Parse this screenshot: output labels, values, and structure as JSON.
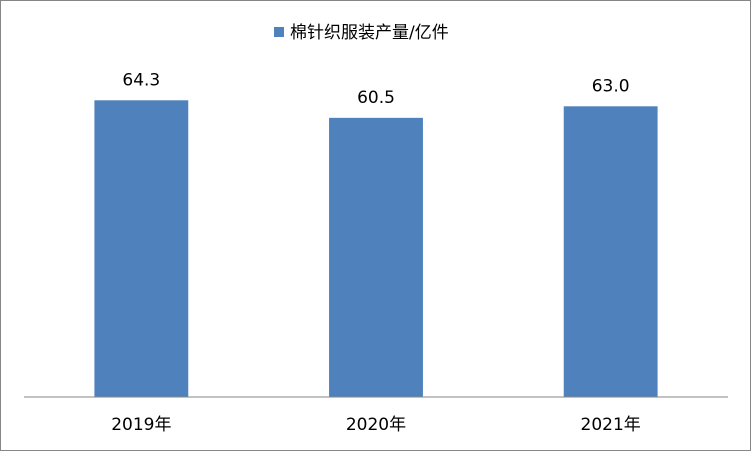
{
  "chart_data": {
    "type": "bar",
    "categories": [
      "2019年",
      "2020年",
      "2021年"
    ],
    "series": [
      {
        "name": "棉针织服装产量/亿件",
        "color": "#4f81bd",
        "values": [
          64.3,
          60.5,
          63.0
        ],
        "value_labels": [
          "64.3",
          "60.5",
          "63.0"
        ]
      }
    ],
    "ylim": [
      0,
      70
    ],
    "legend": "top"
  }
}
